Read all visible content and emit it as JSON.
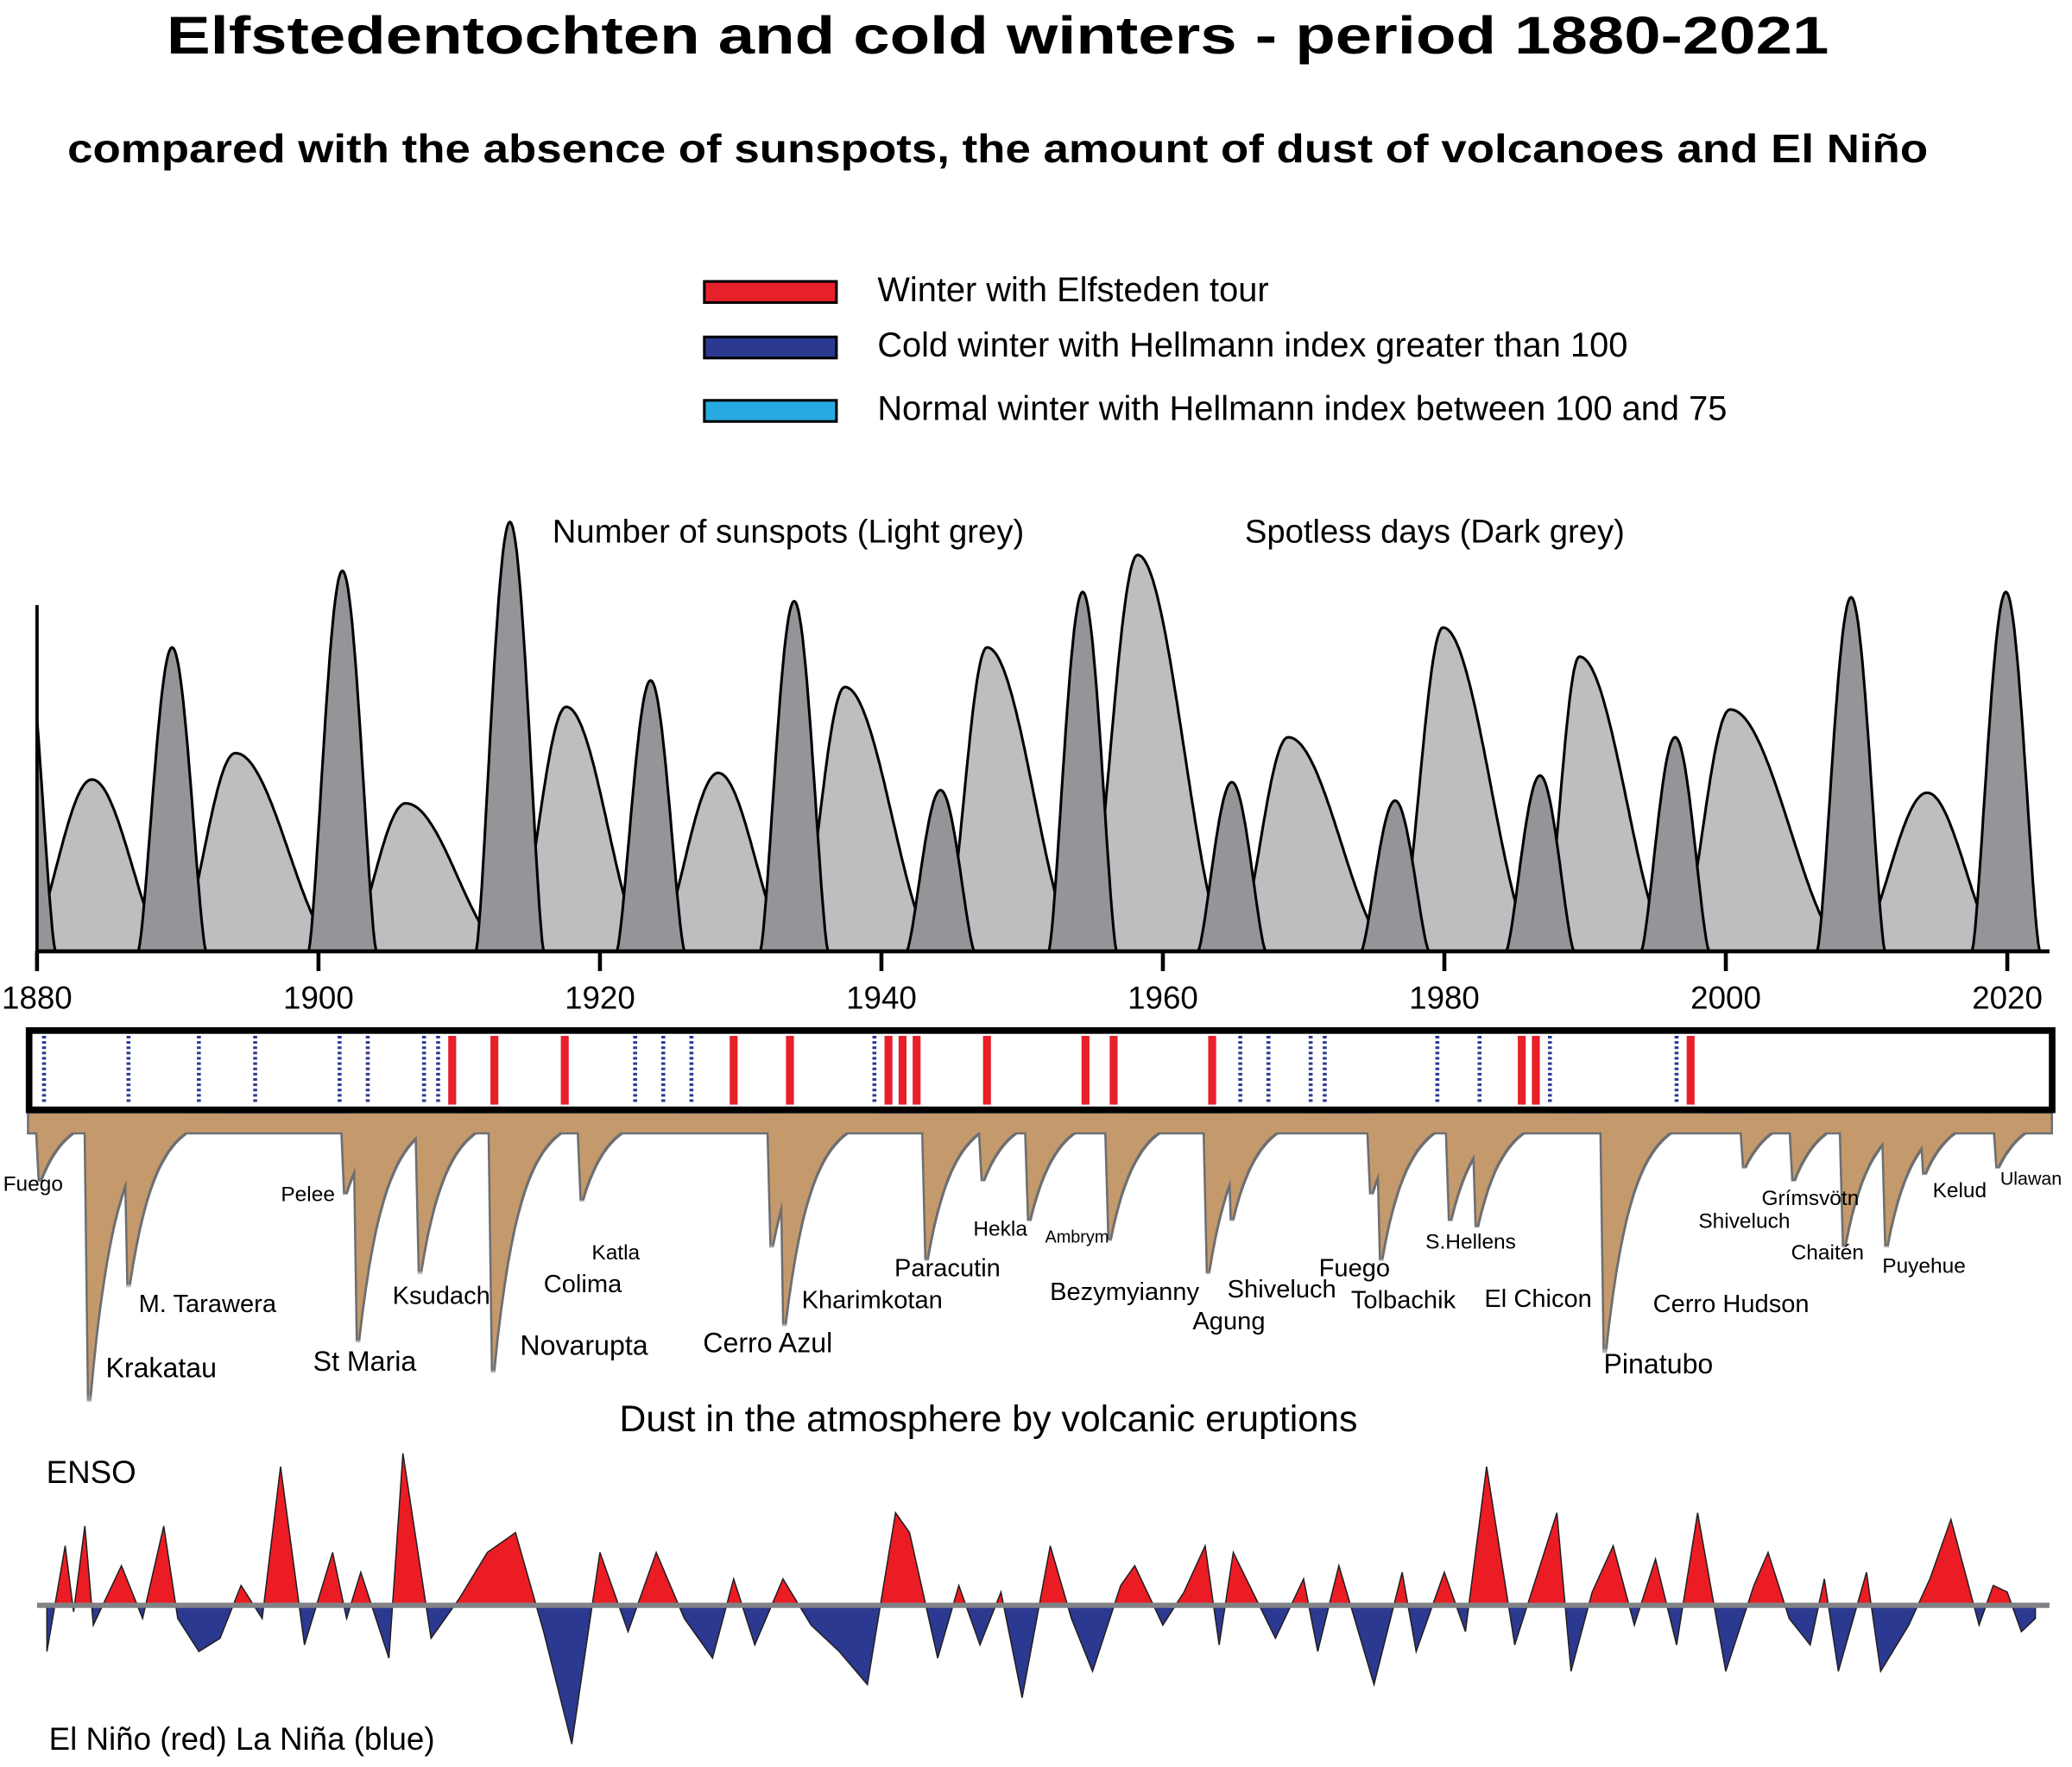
{
  "title": "Elfstedentochten and cold winters  - period 1880-2021",
  "subtitle": "compared with the absence of sunspots, the amount of dust of volcanoes and El Niño",
  "legend": [
    {
      "label": "Winter with Elfsteden tour",
      "color": "#e8202a"
    },
    {
      "label": "Cold winter with Hellmann index greater than 100",
      "color": "#2b3990"
    },
    {
      "label": "Normal winter with Hellmann index between 100 and 75",
      "color": "#27aae1"
    }
  ],
  "sunspots": {
    "label_light": "Number of sunspots (Light grey)",
    "label_dark": "Spotless days (Dark grey)",
    "xlim": [
      1880,
      2023
    ],
    "xticks": [
      1880,
      1900,
      1920,
      1940,
      1960,
      1980,
      2000,
      2020
    ],
    "ylim": [
      0,
      330
    ],
    "light_color": "#bcbec0",
    "dark_color": "#939598",
    "max_years": [
      1883.9,
      1894.1,
      1906.2,
      1917.6,
      1928.4,
      1937.4,
      1947.5,
      1958.2,
      1968.9,
      1979.9,
      1989.6,
      2000.3,
      2014.3
    ],
    "max": [
      130,
      150,
      112,
      185,
      135,
      200,
      230,
      300,
      162,
      245,
      223,
      183,
      120
    ],
    "min_years": [
      1878.9,
      1889.6,
      1901.7,
      1913.6,
      1923.6,
      1933.8,
      1944.2,
      1954.3,
      1964.9,
      1976.5,
      1986.8,
      1996.4,
      2008.9,
      2019.9
    ],
    "spotless": [
      262,
      230,
      288,
      325,
      205,
      265,
      122,
      272,
      128,
      114,
      133,
      162,
      268,
      272
    ]
  },
  "winters": {
    "elfsteden": [
      1909,
      1912,
      1917,
      1929,
      1933,
      1940,
      1941,
      1942,
      1947,
      1954,
      1956,
      1963,
      1985,
      1986,
      1997
    ],
    "cold": [
      1880,
      1886,
      1891,
      1895,
      1901,
      1903,
      1907,
      1908,
      1922,
      1924,
      1926,
      1939,
      1965,
      1967,
      1970,
      1971,
      1979,
      1982,
      1987,
      1996
    ]
  },
  "volcanoes": {
    "caption": "Dust in the atmosphere by volcanic eruptions",
    "color": "#c49a6c",
    "names": [
      "Fuego",
      "Krakatau",
      "M. Tarawera",
      "Pelee",
      "St Maria",
      "Ksudach",
      "Novarupta",
      "Colima",
      "Katla",
      "Cerro Azul",
      "Kharimkotan",
      "Paracutin",
      "Hekla",
      "Ambrym",
      "Bezymyianny",
      "Agung",
      "Shiveluch",
      "Fuego",
      "Tolbachik",
      "S.Hellens",
      "El Chicon",
      "Pinatubo",
      "Cerro Hudson",
      "Shiveluch",
      "Grímsvötn",
      "Chaitén",
      "Puyehue",
      "Kelud",
      "Ulawan"
    ],
    "years": [
      1880.2,
      1883.7,
      1886.5,
      1901.9,
      1902.8,
      1907.2,
      1912.4,
      1913.1,
      1918.7,
      1932.2,
      1933.1,
      1943.2,
      1947.2,
      1950.5,
      1956.2,
      1963.2,
      1964.9,
      1974.8,
      1975.5,
      1980.4,
      1982.3,
      1991.4,
      1991.7,
      2001.3,
      2004.8,
      2008.4,
      2011.4,
      2014.1,
      2019.3
    ],
    "dust": [
      50,
      217,
      130,
      60,
      172,
      120,
      195,
      115,
      65,
      100,
      160,
      110,
      50,
      80,
      95,
      120,
      80,
      60,
      110,
      80,
      85,
      180,
      140,
      40,
      50,
      100,
      100,
      45,
      40
    ]
  },
  "enso": {
    "label": "ENSO",
    "legend_label": "El Niño (red)  La Niña (blue)",
    "positive_color": "#ec1c24",
    "negative_color": "#2b3990",
    "ylim": [
      -120,
      120
    ],
    "x": [
      1880.7,
      1882,
      1882.6,
      1883.4,
      1884,
      1886,
      1887.5,
      1889,
      1890,
      1891.5,
      1893,
      1894.5,
      1896,
      1897.3,
      1899,
      1901,
      1902,
      1903,
      1905,
      1906,
      1908,
      1910,
      1912,
      1914,
      1916,
      1918,
      1920,
      1922,
      1924,
      1926,
      1928,
      1929.5,
      1931,
      1933,
      1935,
      1937,
      1939,
      1941,
      1942,
      1944,
      1945.5,
      1947,
      1948.5,
      1950,
      1952,
      1953.5,
      1955,
      1957,
      1958,
      1960,
      1961.5,
      1963,
      1964,
      1965,
      1968,
      1970,
      1971,
      1972.5,
      1975,
      1977,
      1978,
      1980,
      1981.5,
      1983,
      1985,
      1988,
      1989,
      1990.5,
      1992,
      1993.5,
      1995,
      1996.5,
      1998,
      2000,
      2002,
      2003,
      2004.5,
      2006,
      2007,
      2008,
      2010,
      2011,
      2013,
      2014.5,
      2016,
      2018,
      2019,
      2020,
      2021,
      2022
    ],
    "values": [
      -35,
      45,
      -5,
      60,
      -15,
      30,
      -10,
      60,
      -10,
      -35,
      -25,
      15,
      -10,
      105,
      -30,
      40,
      -10,
      25,
      -40,
      115,
      -25,
      5,
      40,
      55,
      -20,
      -105,
      40,
      -20,
      40,
      -10,
      -40,
      20,
      -30,
      20,
      -15,
      -35,
      -60,
      70,
      55,
      -40,
      15,
      -30,
      10,
      -70,
      45,
      -10,
      -50,
      15,
      30,
      -15,
      10,
      45,
      -30,
      40,
      -25,
      20,
      -35,
      30,
      -60,
      25,
      -35,
      25,
      -20,
      105,
      -30,
      70,
      -50,
      10,
      45,
      -15,
      35,
      -30,
      70,
      -50,
      15,
      40,
      -10,
      -30,
      20,
      -50,
      25,
      -50,
      -15,
      20,
      65,
      -15,
      15,
      10,
      -20,
      -10
    ]
  }
}
